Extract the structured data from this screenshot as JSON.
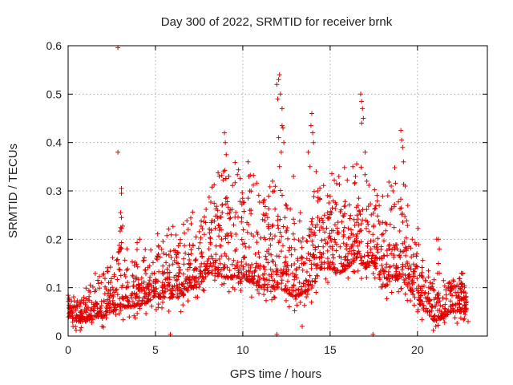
{
  "chart_data": {
    "type": "scatter",
    "title": "Day 300 of 2022, SRMTID for receiver brnk",
    "xlabel": "GPS time / hours",
    "ylabel": "SRMTID / TECUs",
    "xlim": [
      0,
      24
    ],
    "ylim": [
      0,
      0.6
    ],
    "xticks": [
      0,
      5,
      10,
      15,
      20
    ],
    "yticks": [
      0,
      0.1,
      0.2,
      0.3,
      0.4,
      0.5,
      0.6
    ],
    "grid": true,
    "marker": "plus",
    "series_color": "#e00000",
    "envelope": [
      [
        0.0,
        0.04,
        0.085
      ],
      [
        0.5,
        0.03,
        0.07
      ],
      [
        1.0,
        0.03,
        0.08
      ],
      [
        1.5,
        0.04,
        0.1
      ],
      [
        2.0,
        0.04,
        0.1
      ],
      [
        2.5,
        0.05,
        0.12
      ],
      [
        3.0,
        0.06,
        0.2
      ],
      [
        3.5,
        0.06,
        0.15
      ],
      [
        4.0,
        0.06,
        0.15
      ],
      [
        4.5,
        0.07,
        0.16
      ],
      [
        5.0,
        0.08,
        0.17
      ],
      [
        5.5,
        0.08,
        0.17
      ],
      [
        6.0,
        0.08,
        0.18
      ],
      [
        6.5,
        0.08,
        0.18
      ],
      [
        7.0,
        0.1,
        0.2
      ],
      [
        7.5,
        0.1,
        0.22
      ],
      [
        8.0,
        0.13,
        0.28
      ],
      [
        8.5,
        0.13,
        0.28
      ],
      [
        9.0,
        0.12,
        0.3
      ],
      [
        9.5,
        0.12,
        0.28
      ],
      [
        10.0,
        0.12,
        0.28
      ],
      [
        10.5,
        0.11,
        0.27
      ],
      [
        11.0,
        0.1,
        0.25
      ],
      [
        11.5,
        0.1,
        0.26
      ],
      [
        12.0,
        0.1,
        0.26
      ],
      [
        12.5,
        0.09,
        0.22
      ],
      [
        13.0,
        0.08,
        0.2
      ],
      [
        13.5,
        0.09,
        0.2
      ],
      [
        14.0,
        0.1,
        0.24
      ],
      [
        14.5,
        0.14,
        0.26
      ],
      [
        15.0,
        0.14,
        0.28
      ],
      [
        15.5,
        0.13,
        0.28
      ],
      [
        16.0,
        0.14,
        0.28
      ],
      [
        16.5,
        0.16,
        0.3
      ],
      [
        17.0,
        0.14,
        0.28
      ],
      [
        17.5,
        0.15,
        0.28
      ],
      [
        18.0,
        0.1,
        0.28
      ],
      [
        18.5,
        0.11,
        0.27
      ],
      [
        19.0,
        0.12,
        0.28
      ],
      [
        19.5,
        0.1,
        0.22
      ],
      [
        20.0,
        0.07,
        0.18
      ],
      [
        20.5,
        0.05,
        0.12
      ],
      [
        21.0,
        0.03,
        0.1
      ],
      [
        21.5,
        0.04,
        0.1
      ],
      [
        22.0,
        0.05,
        0.12
      ],
      [
        22.5,
        0.05,
        0.12
      ],
      [
        22.8,
        0.05,
        0.1
      ]
    ],
    "outliers": [
      [
        2.85,
        0.596
      ],
      [
        2.85,
        0.38
      ],
      [
        3.05,
        0.305
      ],
      [
        3.05,
        0.295
      ],
      [
        3.0,
        0.255
      ],
      [
        3.05,
        0.245
      ],
      [
        3.0,
        0.18
      ],
      [
        4.1,
        0.2
      ],
      [
        8.95,
        0.42
      ],
      [
        9.0,
        0.4
      ],
      [
        9.05,
        0.375
      ],
      [
        9.2,
        0.33
      ],
      [
        8.9,
        0.34
      ],
      [
        10.3,
        0.36
      ],
      [
        10.35,
        0.33
      ],
      [
        10.4,
        0.3
      ],
      [
        10.3,
        0.285
      ],
      [
        11.7,
        0.32
      ],
      [
        11.8,
        0.3
      ],
      [
        12.1,
        0.35
      ],
      [
        12.2,
        0.38
      ],
      [
        11.95,
        0.52
      ],
      [
        12.05,
        0.53
      ],
      [
        12.1,
        0.54
      ],
      [
        12.15,
        0.5
      ],
      [
        12.0,
        0.49
      ],
      [
        12.25,
        0.47
      ],
      [
        12.3,
        0.43
      ],
      [
        12.35,
        0.4
      ],
      [
        12.25,
        0.435
      ],
      [
        12.05,
        0.41
      ],
      [
        12.5,
        0.27
      ],
      [
        12.9,
        0.33
      ],
      [
        13.75,
        0.38
      ],
      [
        13.9,
        0.435
      ],
      [
        13.95,
        0.46
      ],
      [
        14.0,
        0.42
      ],
      [
        14.05,
        0.4
      ],
      [
        13.85,
        0.35
      ],
      [
        14.2,
        0.34
      ],
      [
        14.3,
        0.3
      ],
      [
        13.4,
        0.02
      ],
      [
        15.5,
        0.33
      ],
      [
        16.3,
        0.35
      ],
      [
        16.45,
        0.33
      ],
      [
        16.6,
        0.27
      ],
      [
        16.75,
        0.5
      ],
      [
        16.8,
        0.485
      ],
      [
        16.85,
        0.47
      ],
      [
        16.9,
        0.45
      ],
      [
        16.8,
        0.44
      ],
      [
        17.0,
        0.38
      ],
      [
        17.1,
        0.32
      ],
      [
        18.3,
        0.29
      ],
      [
        18.5,
        0.31
      ],
      [
        18.6,
        0.3
      ],
      [
        19.05,
        0.425
      ],
      [
        19.1,
        0.405
      ],
      [
        19.15,
        0.39
      ],
      [
        19.2,
        0.36
      ],
      [
        19.3,
        0.31
      ],
      [
        19.45,
        0.27
      ],
      [
        19.7,
        0.2
      ],
      [
        21.1,
        0.2
      ],
      [
        21.2,
        0.2
      ],
      [
        21.25,
        0.18
      ],
      [
        21.2,
        0.15
      ],
      [
        21.15,
        0.13
      ],
      [
        21.05,
        0.02
      ],
      [
        22.6,
        0.13
      ],
      [
        22.9,
        0.03
      ]
    ],
    "zero_markers": [
      5.85,
      11.95,
      17.45
    ]
  }
}
